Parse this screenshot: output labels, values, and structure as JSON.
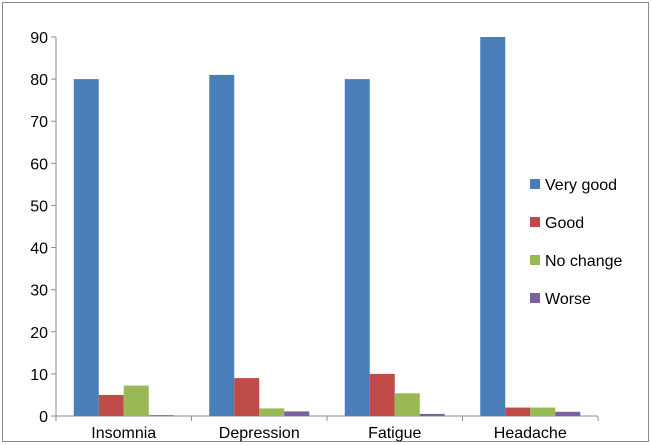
{
  "chart_data": {
    "type": "bar",
    "title": "",
    "xlabel": "",
    "ylabel": "",
    "categories": [
      "Insomnia",
      "Depression",
      "Fatigue",
      "Headache"
    ],
    "series": [
      {
        "name": "Very good",
        "color": "#4a7ebb",
        "values": [
          80,
          81,
          80,
          90
        ]
      },
      {
        "name": "Good",
        "color": "#be4b48",
        "values": [
          5,
          9,
          10,
          2
        ]
      },
      {
        "name": "No change",
        "color": "#98b954",
        "values": [
          7.2,
          1.8,
          5.4,
          2
        ]
      },
      {
        "name": "Worse",
        "color": "#7d60a0",
        "values": [
          0.2,
          1.1,
          0.5,
          1
        ]
      }
    ],
    "ylim": [
      0,
      90
    ],
    "yticks": [
      0,
      10,
      20,
      30,
      40,
      50,
      60,
      70,
      80,
      90
    ],
    "grid": false,
    "legend": "right"
  }
}
